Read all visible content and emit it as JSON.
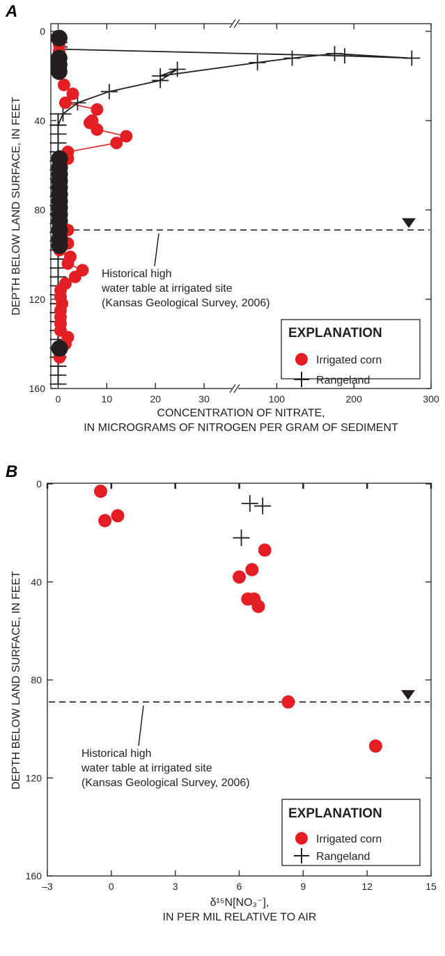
{
  "colors": {
    "irrigated": "#e31e24",
    "irrigated_black": "#231f20",
    "rangeland": "#231f20",
    "axis": "#231f20"
  },
  "chart_data": [
    {
      "panel": "A",
      "type": "scatter",
      "xlabel_line1": "CONCENTRATION OF NITRATE,",
      "xlabel_line2": "IN MICROGRAMS OF NITROGEN PER GRAM OF SEDIMENT",
      "ylabel": "DEPTH BELOW LAND SURFACE, IN FEET",
      "x_scale": "broken",
      "x_segments": [
        {
          "range": [
            -1.5,
            36
          ],
          "ticks": [
            0,
            10,
            20,
            30
          ]
        },
        {
          "range": [
            50,
            300
          ],
          "ticks": [
            100,
            200,
            300
          ]
        }
      ],
      "ylim": [
        0,
        160
      ],
      "y_inverted": true,
      "yticks": [
        0,
        40,
        80,
        120,
        160
      ],
      "legend": {
        "title": "EXPLANATION",
        "entries": [
          "Irrigated corn",
          "Rangeland"
        ],
        "position": "lower-right"
      },
      "water_table": {
        "depth": 89,
        "label_lines": [
          "Historical high",
          "water table at irrigated site",
          "(Kansas Geological Survey, 2006)"
        ]
      },
      "series": [
        {
          "name": "Irrigated corn",
          "points_red": [
            [
              0.2,
              6
            ],
            [
              0.2,
              9
            ],
            [
              0.4,
              13
            ],
            [
              0.4,
              16
            ],
            [
              0.2,
              19
            ],
            [
              1.2,
              24
            ],
            [
              3.0,
              28
            ],
            [
              1.5,
              32
            ],
            [
              8.0,
              35
            ],
            [
              7.0,
              40
            ],
            [
              6.5,
              41
            ],
            [
              8.0,
              44
            ],
            [
              14.0,
              47
            ],
            [
              12.0,
              50
            ],
            [
              2.0,
              54
            ],
            [
              2.0,
              57
            ],
            [
              0.5,
              60
            ],
            [
              0.3,
              65
            ],
            [
              0.3,
              70
            ],
            [
              0.3,
              75
            ],
            [
              0.3,
              80
            ],
            [
              0.5,
              85
            ],
            [
              2.0,
              89
            ],
            [
              0.3,
              92
            ],
            [
              2.0,
              95
            ],
            [
              0.3,
              98
            ],
            [
              2.5,
              101
            ],
            [
              2.0,
              104
            ],
            [
              5.0,
              107
            ],
            [
              3.5,
              110
            ],
            [
              1.5,
              113
            ],
            [
              0.5,
              116
            ],
            [
              0.5,
              119
            ],
            [
              0.8,
              122
            ],
            [
              0.5,
              125
            ],
            [
              0.5,
              128
            ],
            [
              0.5,
              131
            ],
            [
              0.5,
              134
            ],
            [
              2.0,
              137
            ],
            [
              1.5,
              140
            ],
            [
              0.3,
              143
            ],
            [
              0.3,
              146
            ]
          ],
          "points_black": [
            [
              0.2,
              3
            ],
            [
              0.2,
              12
            ],
            [
              0.2,
              15
            ],
            [
              0.2,
              18
            ],
            [
              0.3,
              57
            ],
            [
              0.3,
              61
            ],
            [
              0.3,
              64
            ],
            [
              0.3,
              67
            ],
            [
              0.3,
              70
            ],
            [
              0.3,
              73
            ],
            [
              0.3,
              76
            ],
            [
              0.3,
              79
            ],
            [
              0.3,
              82
            ],
            [
              0.3,
              85
            ],
            [
              0.3,
              89
            ],
            [
              0.3,
              93
            ],
            [
              0.3,
              96
            ],
            [
              0.3,
              142
            ]
          ]
        },
        {
          "name": "Rangeland",
          "points_upper": [
            [
              0.5,
              3
            ],
            [
              0.5,
              5
            ],
            [
              0.5,
              7
            ],
            [
              0.5,
              8
            ]
          ],
          "path_broken": [
            [
              0.5,
              8
            ],
            [
              188,
              11
            ],
            [
              275,
              12
            ],
            [
              175,
              10
            ],
            [
              120,
              12
            ],
            [
              75,
              14
            ],
            [
              21,
              20
            ],
            [
              24.5,
              17
            ],
            [
              21,
              22
            ],
            [
              10.5,
              27
            ],
            [
              4,
              32
            ],
            [
              1,
              37
            ],
            [
              0,
              42
            ]
          ],
          "tail_depths": [
            37,
            42,
            46,
            50,
            54,
            58,
            62,
            66,
            70,
            74,
            78,
            82,
            86,
            90,
            94,
            98,
            102,
            106,
            110,
            114,
            118,
            122,
            126,
            130,
            134,
            138,
            142,
            146,
            150,
            154,
            158
          ]
        }
      ]
    },
    {
      "panel": "B",
      "type": "scatter",
      "xlabel_line1": "δ¹⁵N[NO₃⁻],",
      "xlabel_line2": "IN PER MIL RELATIVE TO AIR",
      "ylabel": "DEPTH BELOW LAND SURFACE, IN FEET",
      "xlim": [
        -3,
        15
      ],
      "xticks": [
        -3,
        0,
        3,
        6,
        9,
        12,
        15
      ],
      "xtick_labels": [
        "–3",
        "0",
        "3",
        "6",
        "9",
        "12",
        "15"
      ],
      "ylim": [
        0,
        160
      ],
      "y_inverted": true,
      "yticks": [
        0,
        40,
        80,
        120,
        160
      ],
      "legend": {
        "title": "EXPLANATION",
        "entries": [
          "Irrigated corn",
          "Rangeland"
        ],
        "position": "lower-right"
      },
      "water_table": {
        "depth": 89,
        "label_lines": [
          "Historical high",
          "water table at irrigated site",
          "(Kansas Geological Survey, 2006)"
        ]
      },
      "series": [
        {
          "name": "Irrigated corn",
          "points": [
            [
              -0.5,
              3
            ],
            [
              -0.3,
              15
            ],
            [
              0.3,
              13
            ],
            [
              7.2,
              27
            ],
            [
              6.6,
              35
            ],
            [
              6.0,
              38
            ],
            [
              6.4,
              47
            ],
            [
              6.7,
              47
            ],
            [
              6.9,
              50
            ],
            [
              8.3,
              89
            ],
            [
              12.4,
              107
            ]
          ]
        },
        {
          "name": "Rangeland",
          "points": [
            [
              6.5,
              8
            ],
            [
              7.1,
              9
            ],
            [
              6.1,
              22
            ]
          ]
        }
      ]
    }
  ]
}
